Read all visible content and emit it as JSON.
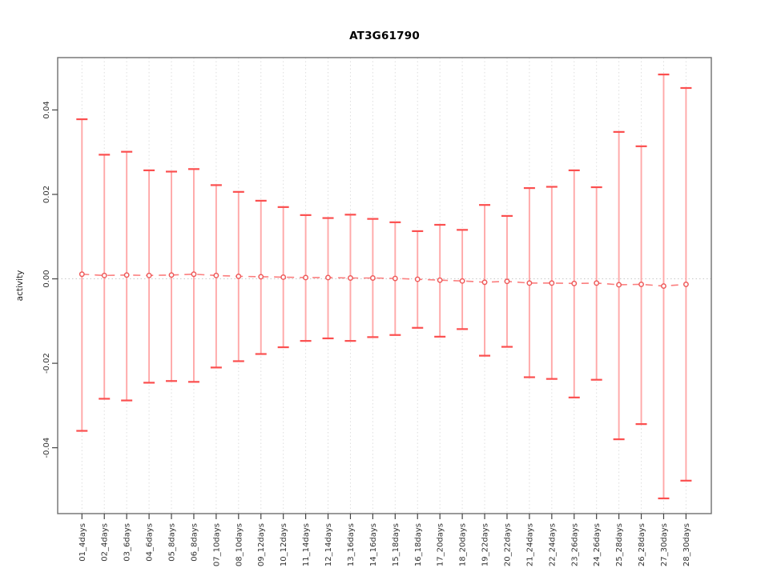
{
  "chart_data": {
    "type": "errorbar",
    "title": "AT3G61790",
    "ylabel": "activity",
    "xlabel": "",
    "categories": [
      "01_4days",
      "02_4days",
      "03_6days",
      "04_6days",
      "05_8days",
      "06_8days",
      "07_10days",
      "08_10days",
      "09_12days",
      "10_12days",
      "11_14days",
      "12_14days",
      "13_16days",
      "14_16days",
      "15_18days",
      "16_18days",
      "17_20days",
      "18_20days",
      "19_22days",
      "20_22days",
      "21_24days",
      "22_24days",
      "23_26days",
      "24_26days",
      "25_28days",
      "26_28days",
      "27_30days",
      "28_30days"
    ],
    "series": [
      {
        "name": "activity",
        "centers": [
          0.0011,
          0.0008,
          0.0009,
          0.0008,
          0.0009,
          0.0011,
          0.0008,
          0.0006,
          0.0005,
          0.0004,
          0.0003,
          0.0003,
          0.0002,
          0.0002,
          0.0001,
          -0.0001,
          -0.0003,
          -0.0005,
          -0.0008,
          -0.0006,
          -0.001,
          -0.001,
          -0.0011,
          -0.001,
          -0.0014,
          -0.0013,
          -0.0017,
          -0.0013
        ],
        "upper": [
          0.0378,
          0.0294,
          0.0301,
          0.0257,
          0.0254,
          0.026,
          0.0222,
          0.0206,
          0.0185,
          0.017,
          0.0151,
          0.0144,
          0.0152,
          0.0142,
          0.0134,
          0.0113,
          0.0128,
          0.0116,
          0.0175,
          0.0149,
          0.0215,
          0.0218,
          0.0257,
          0.0217,
          0.0348,
          0.0314,
          0.0484,
          0.0452
        ],
        "lower": [
          -0.036,
          -0.0284,
          -0.0288,
          -0.0246,
          -0.0242,
          -0.0244,
          -0.021,
          -0.0195,
          -0.0178,
          -0.0162,
          -0.0147,
          -0.0141,
          -0.0147,
          -0.0138,
          -0.0133,
          -0.0116,
          -0.0137,
          -0.0119,
          -0.0182,
          -0.0161,
          -0.0233,
          -0.0237,
          -0.0281,
          -0.0239,
          -0.038,
          -0.0344,
          -0.052,
          -0.0478
        ]
      }
    ],
    "yticks": [
      0.04,
      0.02,
      0,
      -0.02,
      -0.04
    ],
    "ytick_labels": [
      "0.04",
      "0.02",
      "0.00",
      "-0.02",
      "-0.04"
    ],
    "ylim": [
      -0.0556,
      0.0524
    ],
    "zero_reference_line": 0,
    "legend_position": "none",
    "grid": {
      "vertical_dotted_per_category": true,
      "horizontal_dotted_at_zero": true
    },
    "style": {
      "stem_color": "#ffa8a8",
      "cap_color": "#fb4f4f",
      "point_outline_color": "#ee5a5a",
      "point_fill_color": "#ffffff",
      "dash_line_color": "#fb7e7e",
      "grid_color": "#dedede",
      "zero_line_color": "#c9c9c9",
      "axis_box_color": "#6f6f6f",
      "tick_color": "#444444",
      "text_color": "#303030"
    }
  }
}
